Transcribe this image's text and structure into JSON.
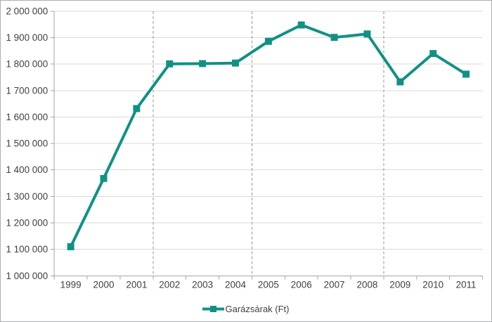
{
  "chart_data": {
    "type": "line",
    "title": "",
    "xlabel": "",
    "ylabel": "",
    "categories": [
      "1999",
      "2000",
      "2001",
      "2002",
      "2003",
      "2004",
      "2005",
      "2006",
      "2007",
      "2008",
      "2009",
      "2010",
      "2011"
    ],
    "series": [
      {
        "name": "Garázsárak (Ft)",
        "color": "#109184",
        "marker": "square",
        "values": [
          1110000,
          1368000,
          1632000,
          1801000,
          1802000,
          1804000,
          1886000,
          1948000,
          1901000,
          1914000,
          1733000,
          1840000,
          1762000
        ]
      }
    ],
    "ylim": [
      1000000,
      2000000
    ],
    "ytick_step": 100000,
    "ytick_labels": [
      "1 000 000",
      "1 100 000",
      "1 200 000",
      "1 300 000",
      "1 400 000",
      "1 500 000",
      "1 600 000",
      "1 700 000",
      "1 800 000",
      "1 900 000",
      "2 000 000"
    ],
    "grid": "horizontal",
    "legend_position": "bottom",
    "dashed_vlines_after": [
      "2001",
      "2004",
      "2008"
    ],
    "colors": {
      "gridline": "#d9d9d9",
      "axis": "#a6a6a6",
      "dashed_line": "#969696",
      "text": "#404040",
      "background": "#ffffff",
      "figure_border": "#aab0b5"
    }
  }
}
